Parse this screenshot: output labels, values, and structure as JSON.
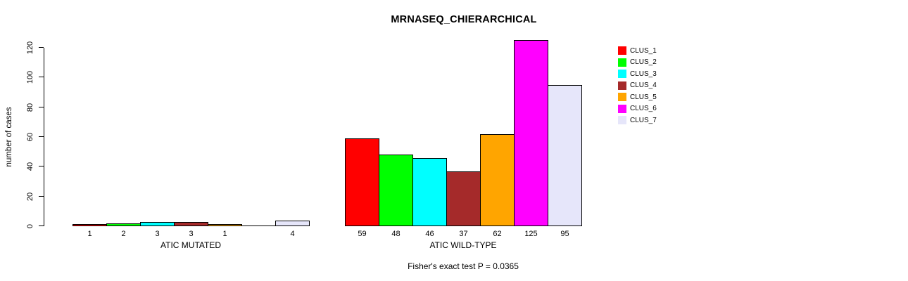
{
  "page": {
    "background": "#ffffff"
  },
  "chart_data": {
    "type": "bar",
    "title": "MRNASEQ_CHIERARCHICAL",
    "ylabel": "number of cases",
    "xlabel": "",
    "ylim": [
      0,
      130
    ],
    "yticks": [
      0,
      20,
      40,
      60,
      80,
      100,
      120
    ],
    "grid": false,
    "legend_position": "right-outside",
    "categories": [
      "ATIC MUTATED",
      "ATIC WILD-TYPE"
    ],
    "series": [
      {
        "name": "CLUS_1",
        "color": "#ff0000",
        "values": [
          1,
          59
        ]
      },
      {
        "name": "CLUS_2",
        "color": "#00ff00",
        "values": [
          2,
          48
        ]
      },
      {
        "name": "CLUS_3",
        "color": "#00ffff",
        "values": [
          3,
          46
        ]
      },
      {
        "name": "CLUS_4",
        "color": "#a52a2a",
        "values": [
          3,
          37
        ]
      },
      {
        "name": "CLUS_5",
        "color": "#ffa500",
        "values": [
          1,
          62
        ]
      },
      {
        "name": "CLUS_6",
        "color": "#ff00ff",
        "values": [
          0,
          125
        ]
      },
      {
        "name": "CLUS_7",
        "color": "#e6e6fa",
        "values": [
          4,
          95
        ]
      }
    ],
    "bar_value_labels_shown": true,
    "zero_value_labels_hidden": true,
    "annotation": "Fisher's exact test P = 0.0365"
  }
}
